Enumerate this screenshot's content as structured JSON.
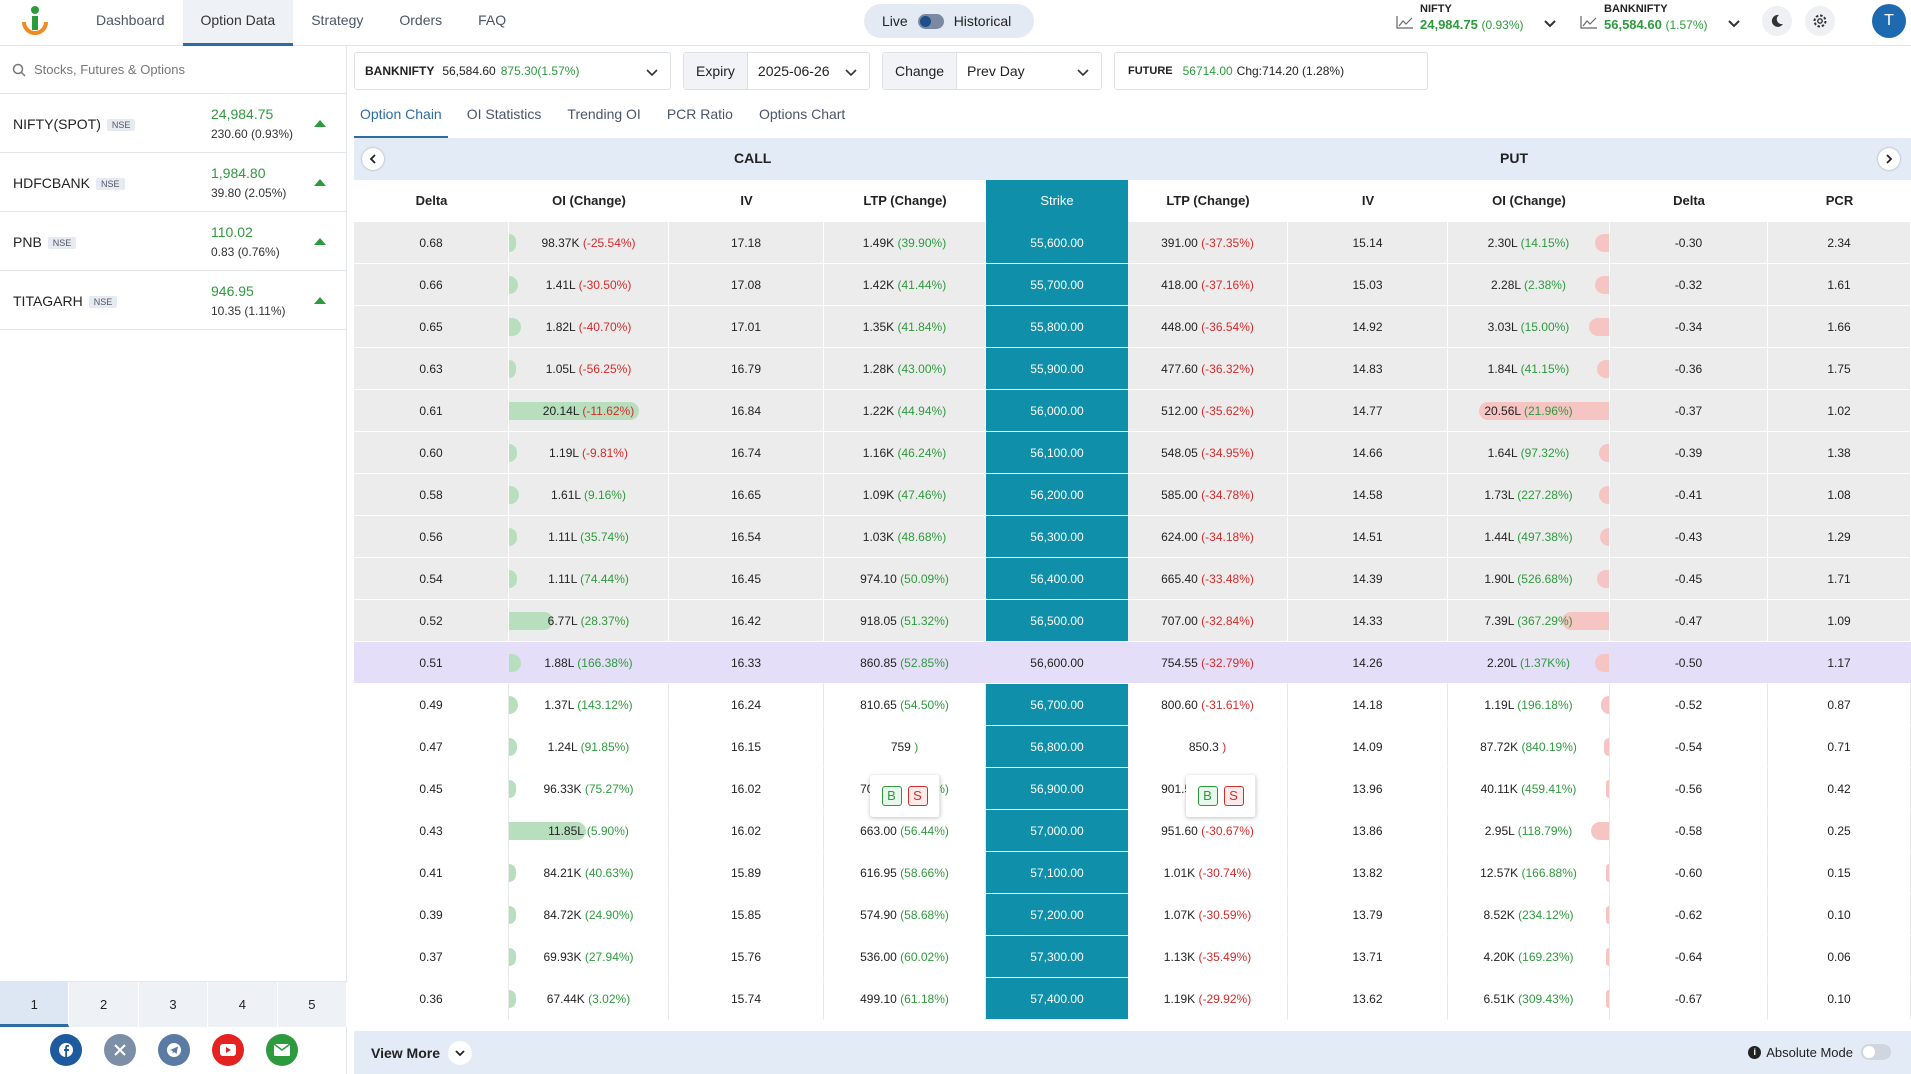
{
  "nav": {
    "items": [
      "Dashboard",
      "Option Data",
      "Strategy",
      "Orders",
      "FAQ"
    ],
    "active": 1
  },
  "mode": {
    "live": "Live",
    "historical": "Historical"
  },
  "indices": [
    {
      "name": "NIFTY",
      "value": "24,984.75",
      "change": "(0.93%)"
    },
    {
      "name": "BANKNIFTY",
      "value": "56,584.60",
      "change": "(1.57%)"
    }
  ],
  "user": {
    "initial": "T"
  },
  "sidebar": {
    "search_placeholder": "Stocks, Futures & Options",
    "watchlist": [
      {
        "symbol": "NIFTY(SPOT)",
        "exchange": "NSE",
        "price": "24,984.75",
        "change": "230.60 (0.93%)"
      },
      {
        "symbol": "HDFCBANK",
        "exchange": "NSE",
        "price": "1,984.80",
        "change": "39.80 (2.05%)"
      },
      {
        "symbol": "PNB",
        "exchange": "NSE",
        "price": "110.02",
        "change": "0.83 (0.76%)"
      },
      {
        "symbol": "TITAGARH",
        "exchange": "NSE",
        "price": "946.95",
        "change": "10.35 (1.11%)"
      }
    ],
    "pages": [
      "1",
      "2",
      "3",
      "4",
      "5"
    ],
    "social": [
      "facebook-icon",
      "x-icon",
      "telegram-icon",
      "youtube-icon",
      "email-icon"
    ]
  },
  "filters": {
    "symbol": "BANKNIFTY",
    "symbol_price": "56,584.60",
    "symbol_change": "875.30(1.57%)",
    "expiry_label": "Expiry",
    "expiry_value": "2025-06-26",
    "change_label": "Change",
    "change_value": "Prev Day",
    "future_label": "FUTURE",
    "future_price": "56714.00",
    "future_change": "Chg:714.20 (1.28%)"
  },
  "tabs": [
    "Option Chain",
    "OI Statistics",
    "Trending OI",
    "PCR Ratio",
    "Options Chart"
  ],
  "table": {
    "call_title": "CALL",
    "put_title": "PUT",
    "columns": [
      "Delta",
      "OI (Change)",
      "IV",
      "LTP (Change)",
      "Strike",
      "LTP (Change)",
      "IV",
      "OI (Change)",
      "Delta",
      "PCR"
    ],
    "buy_label": "B",
    "sell_label": "S",
    "rows": [
      {
        "cd": "0.68",
        "coi": "98.37K",
        "coic": "(-25.54%)",
        "ciw": 0.02,
        "civ": "17.18",
        "cltp": "1.49K",
        "cltpc": "(39.90%)",
        "k": "55,600.00",
        "pltp": "391.00",
        "pltpc": "(-37.35%)",
        "piv": "15.14",
        "poi": "2.30L",
        "poic": "(14.15%)",
        "piw": 0.11,
        "pd": "-0.30",
        "pcr": "2.34",
        "t": "itm"
      },
      {
        "cd": "0.66",
        "coi": "1.41L",
        "coic": "(-30.50%)",
        "ciw": 0.07,
        "civ": "17.08",
        "cltp": "1.42K",
        "cltpc": "(41.44%)",
        "k": "55,700.00",
        "pltp": "418.00",
        "pltpc": "(-37.16%)",
        "piv": "15.03",
        "poi": "2.28L",
        "poic": "(2.38%)",
        "piw": 0.11,
        "pd": "-0.32",
        "pcr": "1.61",
        "t": "itm"
      },
      {
        "cd": "0.65",
        "coi": "1.82L",
        "coic": "(-40.70%)",
        "ciw": 0.09,
        "civ": "17.01",
        "cltp": "1.35K",
        "cltpc": "(41.84%)",
        "k": "55,800.00",
        "pltp": "448.00",
        "pltpc": "(-36.54%)",
        "piv": "14.92",
        "poi": "3.03L",
        "poic": "(15.00%)",
        "piw": 0.15,
        "pd": "-0.34",
        "pcr": "1.66",
        "t": "itm"
      },
      {
        "cd": "0.63",
        "coi": "1.05L",
        "coic": "(-56.25%)",
        "ciw": 0.05,
        "civ": "16.79",
        "cltp": "1.28K",
        "cltpc": "(43.00%)",
        "k": "55,900.00",
        "pltp": "477.60",
        "pltpc": "(-36.32%)",
        "piv": "14.83",
        "poi": "1.84L",
        "poic": "(41.15%)",
        "piw": 0.09,
        "pd": "-0.36",
        "pcr": "1.75",
        "t": "itm"
      },
      {
        "cd": "0.61",
        "coi": "20.14L",
        "coic": "(-11.62%)",
        "ciw": 1.0,
        "civ": "16.84",
        "cltp": "1.22K",
        "cltpc": "(44.94%)",
        "k": "56,000.00",
        "pltp": "512.00",
        "pltpc": "(-35.62%)",
        "piv": "14.77",
        "poi": "20.56L",
        "poic": "(21.96%)",
        "piw": 1.0,
        "pd": "-0.37",
        "pcr": "1.02",
        "t": "itm"
      },
      {
        "cd": "0.60",
        "coi": "1.19L",
        "coic": "(-9.81%)",
        "ciw": 0.06,
        "civ": "16.74",
        "cltp": "1.16K",
        "cltpc": "(46.24%)",
        "k": "56,100.00",
        "pltp": "548.05",
        "pltpc": "(-34.95%)",
        "piv": "14.66",
        "poi": "1.64L",
        "poic": "(97.32%)",
        "piw": 0.08,
        "pd": "-0.39",
        "pcr": "1.38",
        "t": "itm"
      },
      {
        "cd": "0.58",
        "coi": "1.61L",
        "coic": "(9.16%)",
        "ciw": 0.08,
        "civ": "16.65",
        "cltp": "1.09K",
        "cltpc": "(47.46%)",
        "k": "56,200.00",
        "pltp": "585.00",
        "pltpc": "(-34.78%)",
        "piv": "14.58",
        "poi": "1.73L",
        "poic": "(227.28%)",
        "piw": 0.08,
        "pd": "-0.41",
        "pcr": "1.08",
        "t": "itm"
      },
      {
        "cd": "0.56",
        "coi": "1.11L",
        "coic": "(35.74%)",
        "ciw": 0.06,
        "civ": "16.54",
        "cltp": "1.03K",
        "cltpc": "(48.68%)",
        "k": "56,300.00",
        "pltp": "624.00",
        "pltpc": "(-34.18%)",
        "piv": "14.51",
        "poi": "1.44L",
        "poic": "(497.38%)",
        "piw": 0.07,
        "pd": "-0.43",
        "pcr": "1.29",
        "t": "itm"
      },
      {
        "cd": "0.54",
        "coi": "1.11L",
        "coic": "(74.44%)",
        "ciw": 0.06,
        "civ": "16.45",
        "cltp": "974.10",
        "cltpc": "(50.09%)",
        "k": "56,400.00",
        "pltp": "665.40",
        "pltpc": "(-33.48%)",
        "piv": "14.39",
        "poi": "1.90L",
        "poic": "(526.68%)",
        "piw": 0.09,
        "pd": "-0.45",
        "pcr": "1.71",
        "t": "itm"
      },
      {
        "cd": "0.52",
        "coi": "6.77L",
        "coic": "(28.37%)",
        "ciw": 0.34,
        "civ": "16.42",
        "cltp": "918.05",
        "cltpc": "(51.32%)",
        "k": "56,500.00",
        "pltp": "707.00",
        "pltpc": "(-32.84%)",
        "piv": "14.33",
        "poi": "7.39L",
        "poic": "(367.29%)",
        "piw": 0.36,
        "pd": "-0.47",
        "pcr": "1.09",
        "t": "itm"
      },
      {
        "cd": "0.51",
        "coi": "1.88L",
        "coic": "(166.38%)",
        "ciw": 0.09,
        "civ": "16.33",
        "cltp": "860.85",
        "cltpc": "(52.85%)",
        "k": "56,600.00",
        "pltp": "754.55",
        "pltpc": "(-32.79%)",
        "piv": "14.26",
        "poi": "2.20L",
        "poic": "(1.37K%)",
        "piw": 0.11,
        "pd": "-0.50",
        "pcr": "1.17",
        "t": "atm"
      },
      {
        "cd": "0.49",
        "coi": "1.37L",
        "coic": "(143.12%)",
        "ciw": 0.07,
        "civ": "16.24",
        "cltp": "810.65",
        "cltpc": "(54.50%)",
        "k": "56,700.00",
        "pltp": "800.60",
        "pltpc": "(-31.61%)",
        "piv": "14.18",
        "poi": "1.19L",
        "poic": "(196.18%)",
        "piw": 0.06,
        "pd": "-0.52",
        "pcr": "0.87",
        "t": "otm"
      },
      {
        "cd": "0.47",
        "coi": "1.24L",
        "coic": "(91.85%)",
        "ciw": 0.06,
        "civ": "16.15",
        "cltp": "759",
        "cltpc": ")",
        "k": "56,800.00",
        "pltp": "850.3",
        "pltpc": ")",
        "piv": "14.09",
        "poi": "87.72K",
        "poic": "(840.19%)",
        "piw": 0.04,
        "pd": "-0.54",
        "pcr": "0.71",
        "t": "otm",
        "bs": true
      },
      {
        "cd": "0.45",
        "coi": "96.33K",
        "coic": "(75.27%)",
        "ciw": 0.05,
        "civ": "16.02",
        "cltp": "709.35",
        "cltpc": "(55.92%)",
        "k": "56,900.00",
        "pltp": "901.50",
        "pltpc": "(-31.35%)",
        "piv": "13.96",
        "poi": "40.11K",
        "poic": "(459.41%)",
        "piw": 0.02,
        "pd": "-0.56",
        "pcr": "0.42",
        "t": "otm"
      },
      {
        "cd": "0.43",
        "coi": "11.85L",
        "coic": "(5.90%)",
        "ciw": 0.59,
        "civ": "16.02",
        "cltp": "663.00",
        "cltpc": "(56.44%)",
        "k": "57,000.00",
        "pltp": "951.60",
        "pltpc": "(-30.67%)",
        "piv": "13.86",
        "poi": "2.95L",
        "poic": "(118.79%)",
        "piw": 0.14,
        "pd": "-0.58",
        "pcr": "0.25",
        "t": "otm"
      },
      {
        "cd": "0.41",
        "coi": "84.21K",
        "coic": "(40.63%)",
        "ciw": 0.04,
        "civ": "15.89",
        "cltp": "616.95",
        "cltpc": "(58.66%)",
        "k": "57,100.00",
        "pltp": "1.01K",
        "pltpc": "(-30.74%)",
        "piv": "13.82",
        "poi": "12.57K",
        "poic": "(166.88%)",
        "piw": 0.01,
        "pd": "-0.60",
        "pcr": "0.15",
        "t": "otm"
      },
      {
        "cd": "0.39",
        "coi": "84.72K",
        "coic": "(24.90%)",
        "ciw": 0.04,
        "civ": "15.85",
        "cltp": "574.90",
        "cltpc": "(58.68%)",
        "k": "57,200.00",
        "pltp": "1.07K",
        "pltpc": "(-30.59%)",
        "piv": "13.79",
        "poi": "8.52K",
        "poic": "(234.12%)",
        "piw": 0.01,
        "pd": "-0.62",
        "pcr": "0.10",
        "t": "otm"
      },
      {
        "cd": "0.37",
        "coi": "69.93K",
        "coic": "(27.94%)",
        "ciw": 0.03,
        "civ": "15.76",
        "cltp": "536.00",
        "cltpc": "(60.02%)",
        "k": "57,300.00",
        "pltp": "1.13K",
        "pltpc": "(-35.49%)",
        "piv": "13.71",
        "poi": "4.20K",
        "poic": "(169.23%)",
        "piw": 0.01,
        "pd": "-0.64",
        "pcr": "0.06",
        "t": "otm"
      },
      {
        "cd": "0.36",
        "coi": "67.44K",
        "coic": "(3.02%)",
        "ciw": 0.03,
        "civ": "15.74",
        "cltp": "499.10",
        "cltpc": "(61.18%)",
        "k": "57,400.00",
        "pltp": "1.19K",
        "pltpc": "(-29.92%)",
        "piv": "13.62",
        "poi": "6.51K",
        "poic": "(309.43%)",
        "piw": 0.01,
        "pd": "-0.67",
        "pcr": "0.10",
        "t": "otm"
      }
    ]
  },
  "footer": {
    "view_more": "View More",
    "absolute_mode": "Absolute Mode"
  }
}
